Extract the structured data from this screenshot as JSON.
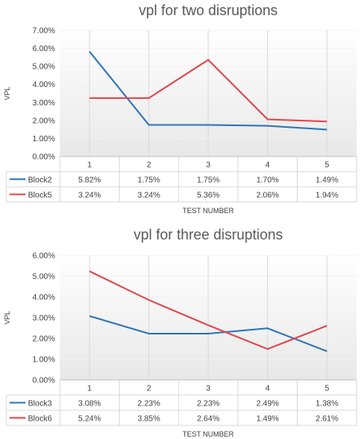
{
  "chart_data": [
    {
      "type": "line",
      "title": "vpl for two disruptions",
      "xlabel": "TEST NUMBER",
      "ylabel": "VPL",
      "categories": [
        "1",
        "2",
        "3",
        "4",
        "5"
      ],
      "ylim": [
        0,
        7
      ],
      "y_ticks": [
        "0.00%",
        "1.00%",
        "2.00%",
        "3.00%",
        "4.00%",
        "5.00%",
        "6.00%",
        "7.00%"
      ],
      "grid": true,
      "legend": "data-table",
      "series": [
        {
          "name": "Block2",
          "color": "#2E75B6",
          "values": [
            5.82,
            1.75,
            1.75,
            1.7,
            1.49
          ],
          "labels": [
            "5.82%",
            "1.75%",
            "1.75%",
            "1.70%",
            "1.49%"
          ]
        },
        {
          "name": "Block5",
          "color": "#E0474C",
          "values": [
            3.24,
            3.24,
            5.36,
            2.06,
            1.94
          ],
          "labels": [
            "3.24%",
            "3.24%",
            "5.36%",
            "2.06%",
            "1.94%"
          ]
        }
      ]
    },
    {
      "type": "line",
      "title": "vpl for three disruptions",
      "xlabel": "TEST NUMBER",
      "ylabel": "VPL",
      "categories": [
        "1",
        "2",
        "3",
        "4",
        "5"
      ],
      "ylim": [
        0,
        6
      ],
      "y_ticks": [
        "0.00%",
        "1.00%",
        "2.00%",
        "3.00%",
        "4.00%",
        "5.00%",
        "6.00%"
      ],
      "grid": true,
      "legend": "data-table",
      "series": [
        {
          "name": "Block3",
          "color": "#2E75B6",
          "values": [
            3.08,
            2.23,
            2.23,
            2.49,
            1.38
          ],
          "labels": [
            "3.08%",
            "2.23%",
            "2.23%",
            "2.49%",
            "1.38%"
          ]
        },
        {
          "name": "Block6",
          "color": "#E0474C",
          "values": [
            5.24,
            3.85,
            2.64,
            1.49,
            2.61
          ],
          "labels": [
            "5.24%",
            "3.85%",
            "2.64%",
            "1.49%",
            "2.61%"
          ]
        }
      ]
    }
  ]
}
